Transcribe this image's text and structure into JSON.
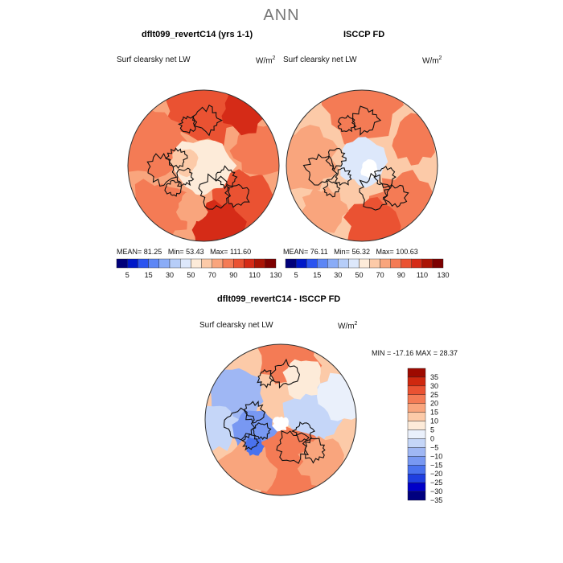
{
  "main_title": "ANN",
  "colors": {
    "abs_scale": [
      "#00007a",
      "#0018c8",
      "#2b54f0",
      "#5d86f5",
      "#8aacf7",
      "#b6cdf8",
      "#dde8fb",
      "#fdebd9",
      "#fccaa8",
      "#f9a57d",
      "#f47b55",
      "#ea5232",
      "#d52b17",
      "#aa1405",
      "#7d0000"
    ],
    "diff_scale": [
      "#00007f",
      "#0000c8",
      "#1f3fe0",
      "#4a72ee",
      "#7898f2",
      "#9fb7f4",
      "#c5d6f8",
      "#eaf0fb",
      "#fdebd9",
      "#fccaa8",
      "#f9a57d",
      "#f47b55",
      "#ea5232",
      "#cf280f",
      "#9e0a00"
    ],
    "coastline": "#111111"
  },
  "chart_data": [
    {
      "type": "heatmap",
      "projection": "north-polar-stereographic",
      "title": "dflt099_revertC14 (yrs 1-1)",
      "variable": "Surf clearsky net LW",
      "units_base": "W/m",
      "units_exp": "2",
      "stats": {
        "mean_label": "MEAN=",
        "mean": "81.25",
        "min_label": "Min=",
        "min": "53.43",
        "max_label": "Max=",
        "max": "111.60"
      },
      "colorbar_labels": [
        "5",
        "15",
        "30",
        "50",
        "70",
        "90",
        "110",
        "130"
      ],
      "field_pattern": "mostly warm oranges, strongest over Eurasia and the North Atlantic; pale near the pole"
    },
    {
      "type": "heatmap",
      "projection": "north-polar-stereographic",
      "title": "ISCCP FD",
      "variable": "Surf clearsky net LW",
      "units_base": "W/m",
      "units_exp": "2",
      "stats": {
        "mean_label": "MEAN=",
        "mean": "76.11",
        "min_label": "Min=",
        "min": "56.32",
        "max_label": "Max=",
        "max": "100.63"
      },
      "colorbar_labels": [
        "5",
        "15",
        "30",
        "50",
        "70",
        "90",
        "110",
        "130"
      ],
      "field_pattern": "paler oranges, light blue patch over the Arctic Ocean"
    },
    {
      "type": "heatmap",
      "projection": "north-polar-stereographic",
      "title": "dflt099_revertC14 - ISCCP FD",
      "variable": "Surf clearsky net LW",
      "units_base": "W/m",
      "units_exp": "2",
      "minmax_text": "MIN = -17.16 MAX =  28.37",
      "colorbar_labels": [
        "35",
        "30",
        "25",
        "20",
        "15",
        "10",
        "5",
        "0",
        "−5",
        "−10",
        "−15",
        "−20",
        "−25",
        "−30",
        "−35"
      ],
      "field_pattern": "positive (red) over Eurasia/North Atlantic, negative (blue) over Canada and northern Pacific"
    }
  ]
}
